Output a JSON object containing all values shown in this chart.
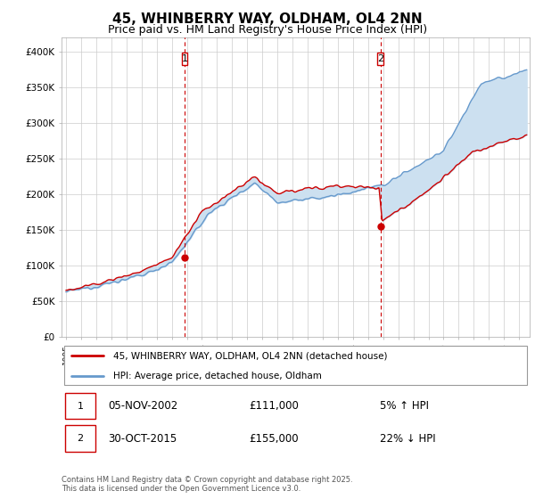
{
  "title": "45, WHINBERRY WAY, OLDHAM, OL4 2NN",
  "subtitle": "Price paid vs. HM Land Registry's House Price Index (HPI)",
  "ylim": [
    0,
    420000
  ],
  "yticks": [
    0,
    50000,
    100000,
    150000,
    200000,
    250000,
    300000,
    350000,
    400000
  ],
  "ytick_labels": [
    "£0",
    "£50K",
    "£100K",
    "£150K",
    "£200K",
    "£250K",
    "£300K",
    "£350K",
    "£400K"
  ],
  "legend_line1": "45, WHINBERRY WAY, OLDHAM, OL4 2NN (detached house)",
  "legend_line2": "HPI: Average price, detached house, Oldham",
  "footnote": "Contains HM Land Registry data © Crown copyright and database right 2025.\nThis data is licensed under the Open Government Licence v3.0.",
  "marker1_label": "1",
  "marker1_date": "05-NOV-2002",
  "marker1_price": "£111,000",
  "marker1_hpi": "5% ↑ HPI",
  "marker2_label": "2",
  "marker2_date": "30-OCT-2015",
  "marker2_price": "£155,000",
  "marker2_hpi": "22% ↓ HPI",
  "line_red_color": "#cc0000",
  "line_blue_color": "#6699cc",
  "fill_blue_color": "#cce0f0",
  "marker_vline_color": "#cc0000",
  "grid_color": "#cccccc",
  "bg_color": "#ffffff",
  "title_fontsize": 11,
  "subtitle_fontsize": 9,
  "sale1_x": 2002.85,
  "sale1_y": 111000,
  "sale2_x": 2015.83,
  "sale2_y": 155000,
  "xlim_left": 1994.7,
  "xlim_right": 2025.7
}
